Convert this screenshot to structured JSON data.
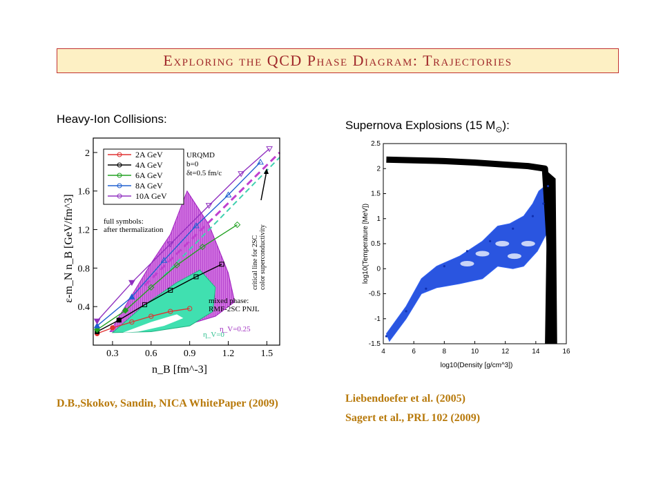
{
  "slide": {
    "title": "Exploring the QCD Phase Diagram: Trajectories",
    "left_heading": "Heavy-Ion Collisions:",
    "right_heading_prefix": "Supernova Explosions (15 M",
    "right_heading_sub": "⊙",
    "right_heading_suffix": "):",
    "left_reference": "D.B.,Skokov, Sandin, NICA WhitePaper (2009)",
    "right_references": [
      "Liebendoefer et al. (2005)",
      "Sagert et al., PRL 102 (2009)"
    ]
  },
  "colors": {
    "title": "#a0282a",
    "title_bg": "#fdf0c4",
    "reference": "#b87a0c",
    "mixed_phase": "#b030c8",
    "eta_zero_region": "#40e0b0"
  },
  "chart_data": [
    {
      "type": "line",
      "xlabel": "n_B [fm^-3]",
      "ylabel": "ε-m_N n_B [GeV/fm^3]",
      "xlim": [
        0.15,
        1.6
      ],
      "ylim": [
        0.0,
        2.15
      ],
      "x_ticks": [
        "0.3",
        "0.6",
        "0.9",
        "1.2",
        "1.5"
      ],
      "y_ticks": [
        "0.4",
        "0.8",
        "1.2",
        "1.6",
        "2"
      ],
      "series": [
        {
          "name": "2A GeV",
          "color": "#e03030",
          "x": [
            0.18,
            0.3,
            0.45,
            0.6,
            0.75,
            0.9
          ],
          "y": [
            0.12,
            0.18,
            0.24,
            0.3,
            0.35,
            0.38
          ]
        },
        {
          "name": "4A GeV",
          "color": "#000000",
          "x": [
            0.18,
            0.35,
            0.55,
            0.75,
            0.95,
            1.15
          ],
          "y": [
            0.14,
            0.26,
            0.42,
            0.57,
            0.71,
            0.84
          ]
        },
        {
          "name": "6A GeV",
          "color": "#20a020",
          "x": [
            0.18,
            0.4,
            0.6,
            0.8,
            1.0,
            1.27
          ],
          "y": [
            0.16,
            0.36,
            0.6,
            0.83,
            1.02,
            1.25
          ]
        },
        {
          "name": "8A GeV",
          "color": "#2060d0",
          "x": [
            0.18,
            0.45,
            0.7,
            0.95,
            1.2,
            1.45
          ],
          "y": [
            0.2,
            0.5,
            0.88,
            1.24,
            1.56,
            1.9
          ]
        },
        {
          "name": "10A GeV",
          "color": "#9030c0",
          "x": [
            0.18,
            0.45,
            0.75,
            1.05,
            1.3,
            1.52
          ],
          "y": [
            0.25,
            0.65,
            1.05,
            1.45,
            1.78,
            2.04
          ]
        }
      ],
      "annotations": [
        "URQMD",
        "b=0",
        "δt=0.5 fm/c",
        "full symbols:",
        "after thermalization",
        "critical line for 2SC",
        "color superconductivity",
        "mixed phase:",
        "RMF-2SC PNJL",
        "η_V=0",
        "η_V=0.25"
      ]
    },
    {
      "type": "scatter",
      "xlabel": "log10(Density [g/cm^3])",
      "ylabel": "log10(Temperature [MeV])",
      "xlim": [
        4,
        16
      ],
      "ylim": [
        -1.5,
        2.5
      ],
      "x_ticks": [
        "4",
        "6",
        "8",
        "10",
        "12",
        "14",
        "16"
      ],
      "y_ticks": [
        "2.5",
        "2",
        "1.5",
        "1",
        "0.5",
        "0",
        "-0.5",
        "-1",
        "-1.5"
      ],
      "series": [
        {
          "color": "#000000",
          "x": [
            4.2,
            8,
            10,
            12,
            13.5,
            14.6,
            14.9,
            15.0,
            15.0
          ],
          "y": [
            2.18,
            2.15,
            2.12,
            2.08,
            2.05,
            2.0,
            0.5,
            -0.5,
            -1.5
          ]
        },
        {
          "color": "#2050e0",
          "x": [
            4.2,
            5.5,
            6.8,
            8,
            9.5,
            11,
            12.5,
            13.8,
            14.5,
            14.8
          ],
          "y": [
            -1.35,
            -0.85,
            -0.4,
            0.05,
            0.35,
            0.55,
            0.8,
            1.05,
            1.3,
            1.65
          ]
        }
      ]
    }
  ]
}
